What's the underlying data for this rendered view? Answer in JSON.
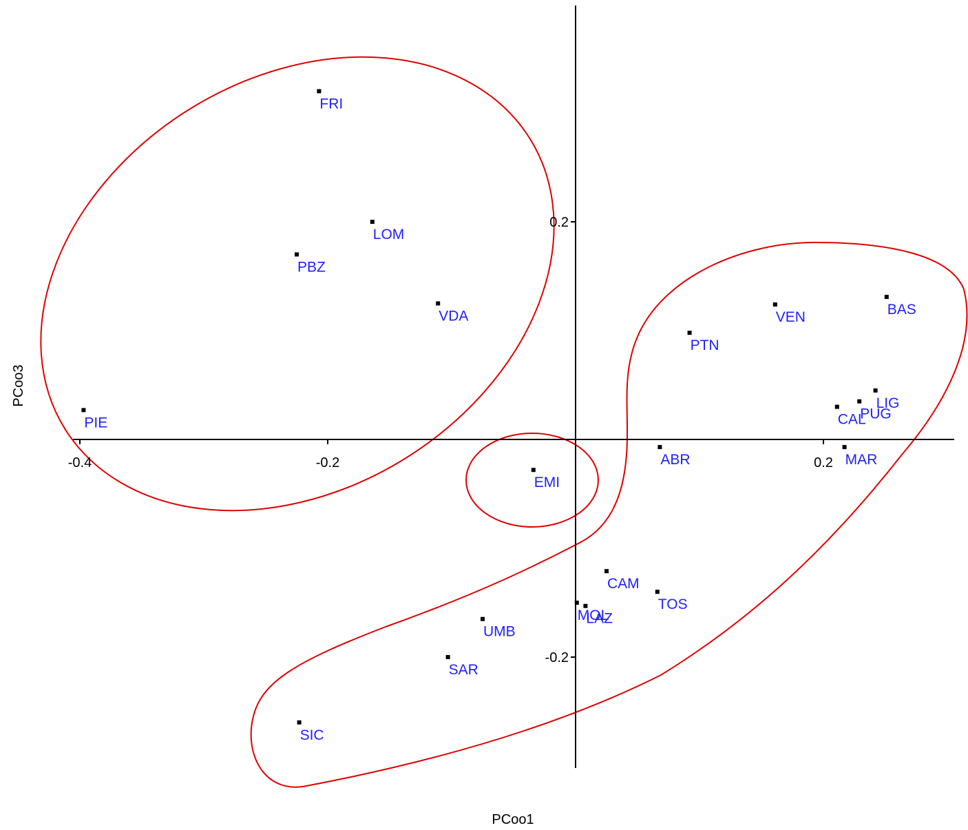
{
  "chart_data": {
    "type": "scatter",
    "title": "",
    "xlabel": "PCoo1",
    "ylabel": "PCoo3",
    "x_ticks": [
      {
        "value": -0.4,
        "label": "-0.4"
      },
      {
        "value": -0.2,
        "label": "-0.2"
      },
      {
        "value": 0.2,
        "label": "0.2"
      }
    ],
    "y_ticks": [
      {
        "value": 0.2,
        "label": "0.2"
      },
      {
        "value": -0.2,
        "label": "-0.2"
      }
    ],
    "xlim": [
      -0.4,
      0.3
    ],
    "ylim": [
      -0.3,
      0.4
    ],
    "grid": false,
    "legend": "none",
    "point_color": "#000000",
    "label_color": "#1f1fff",
    "outline_color": "#e00000",
    "points": [
      {
        "label": "FRI",
        "x": -0.207,
        "y": 0.32
      },
      {
        "label": "LOM",
        "x": -0.164,
        "y": 0.2
      },
      {
        "label": "PBZ",
        "x": -0.225,
        "y": 0.17
      },
      {
        "label": "VDA",
        "x": -0.111,
        "y": 0.125
      },
      {
        "label": "PIE",
        "x": -0.397,
        "y": 0.027
      },
      {
        "label": "EMI",
        "x": -0.034,
        "y": -0.028
      },
      {
        "label": "PTN",
        "x": 0.092,
        "y": 0.098
      },
      {
        "label": "VEN",
        "x": 0.161,
        "y": 0.124
      },
      {
        "label": "BAS",
        "x": 0.251,
        "y": 0.131
      },
      {
        "label": "LIG",
        "x": 0.242,
        "y": 0.045
      },
      {
        "label": "PUG",
        "x": 0.229,
        "y": 0.035
      },
      {
        "label": "CAL",
        "x": 0.211,
        "y": 0.03
      },
      {
        "label": "MAR",
        "x": 0.217,
        "y": -0.007
      },
      {
        "label": "ABR",
        "x": 0.068,
        "y": -0.007
      },
      {
        "label": "CAM",
        "x": 0.025,
        "y": -0.121
      },
      {
        "label": "TOS",
        "x": 0.066,
        "y": -0.14
      },
      {
        "label": "MOL",
        "x": 0.001,
        "y": -0.15
      },
      {
        "label": "LAZ",
        "x": 0.008,
        "y": -0.153
      },
      {
        "label": "UMB",
        "x": -0.075,
        "y": -0.165
      },
      {
        "label": "SAR",
        "x": -0.103,
        "y": -0.2
      },
      {
        "label": "SIC",
        "x": -0.223,
        "y": -0.26
      }
    ]
  }
}
